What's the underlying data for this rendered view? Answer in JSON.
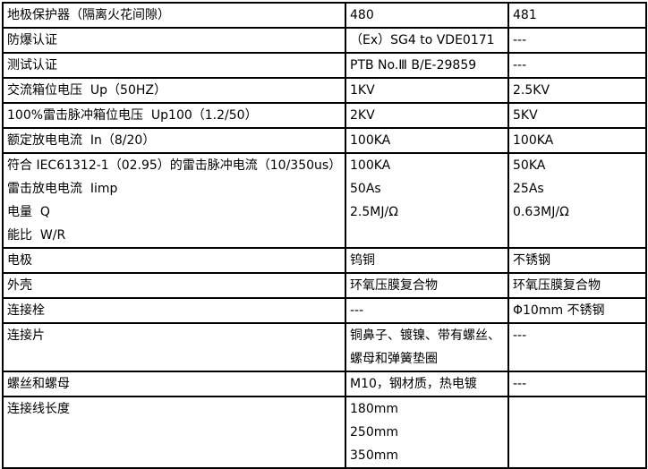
{
  "colors": {
    "border": "#000000",
    "text": "#000000",
    "background": "#ffffff"
  },
  "table": {
    "rows": [
      {
        "label": "地极保护器（隔离火花间隙）",
        "v480": "480",
        "v481": "481"
      },
      {
        "label": "防爆认证",
        "v480": "（Ex）SG4 to VDE0171",
        "v481": "---"
      },
      {
        "label": "测试认证",
        "v480": "PTB No.Ⅲ B/E-29859",
        "v481": "---"
      },
      {
        "label": "交流箱位电压  Up（50HZ）",
        "v480": "1KV",
        "v481": "2.5KV"
      },
      {
        "label": "100%雷击脉冲箱位电压  Up100（1.2/50）",
        "v480": "2KV",
        "v481": "5KV"
      },
      {
        "label": "额定放电电流  In（8/20）",
        "v480": "100KA",
        "v481": "100KA"
      },
      {
        "label": "符合 IEC61312-1（02.95）的雷击脉冲电流（10/350us）\n雷击放电电流  Iimp\n电量  Q\n能比  W/R",
        "v480": "100KA\n50As\n2.5MJ/Ω",
        "v481": "50KA\n25As\n0.63MJ/Ω"
      },
      {
        "label": "电极",
        "v480": "钨铜",
        "v481": "不锈钢"
      },
      {
        "label": "外壳",
        "v480": "环氧压膜复合物",
        "v481": "环氧压膜复合物"
      },
      {
        "label": "连接栓",
        "v480": "---",
        "v481": "Φ10mm 不锈钢"
      },
      {
        "label": "连接片",
        "v480": "铜鼻子、镀镍、带有螺丝、\n螺母和弹簧垫圈",
        "v481": "---"
      },
      {
        "label": "螺丝和螺母",
        "v480": "M10，钢材质，热电镀",
        "v481": "---"
      },
      {
        "label": "连接线长度",
        "v480": "180mm\n250mm\n350mm",
        "v481": ""
      }
    ]
  }
}
